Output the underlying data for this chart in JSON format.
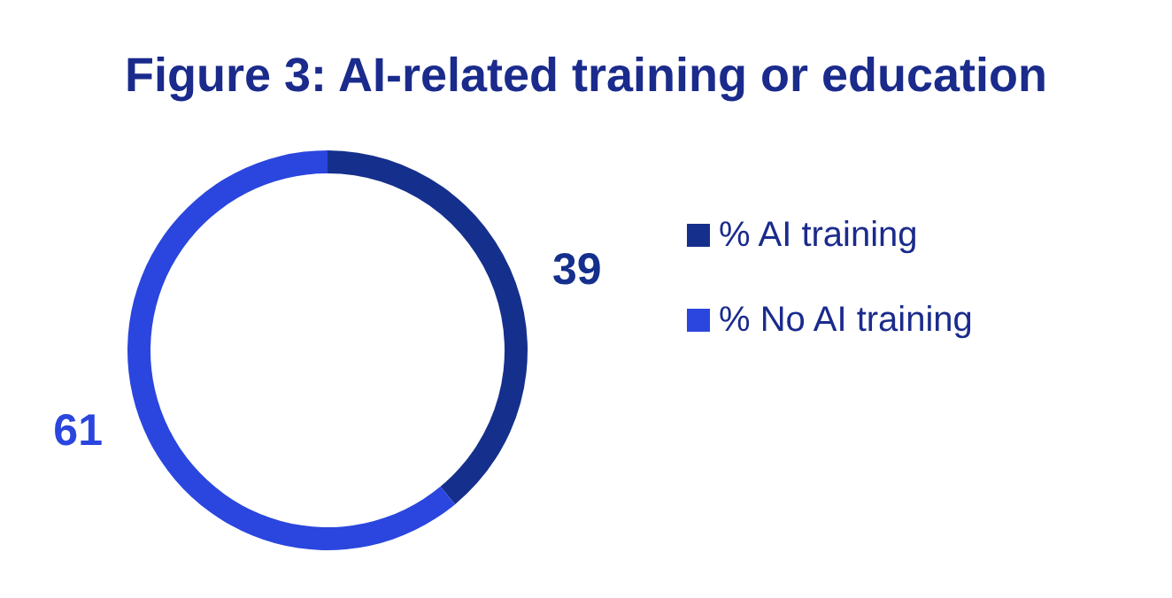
{
  "chart_data": {
    "type": "donut",
    "title": "Figure 3: AI-related training or education",
    "categories": [
      "% AI training",
      "% No AI training"
    ],
    "values": [
      39,
      61
    ],
    "colors": [
      "#15308c",
      "#2a46de"
    ],
    "data_labels": true,
    "legend": "right"
  }
}
